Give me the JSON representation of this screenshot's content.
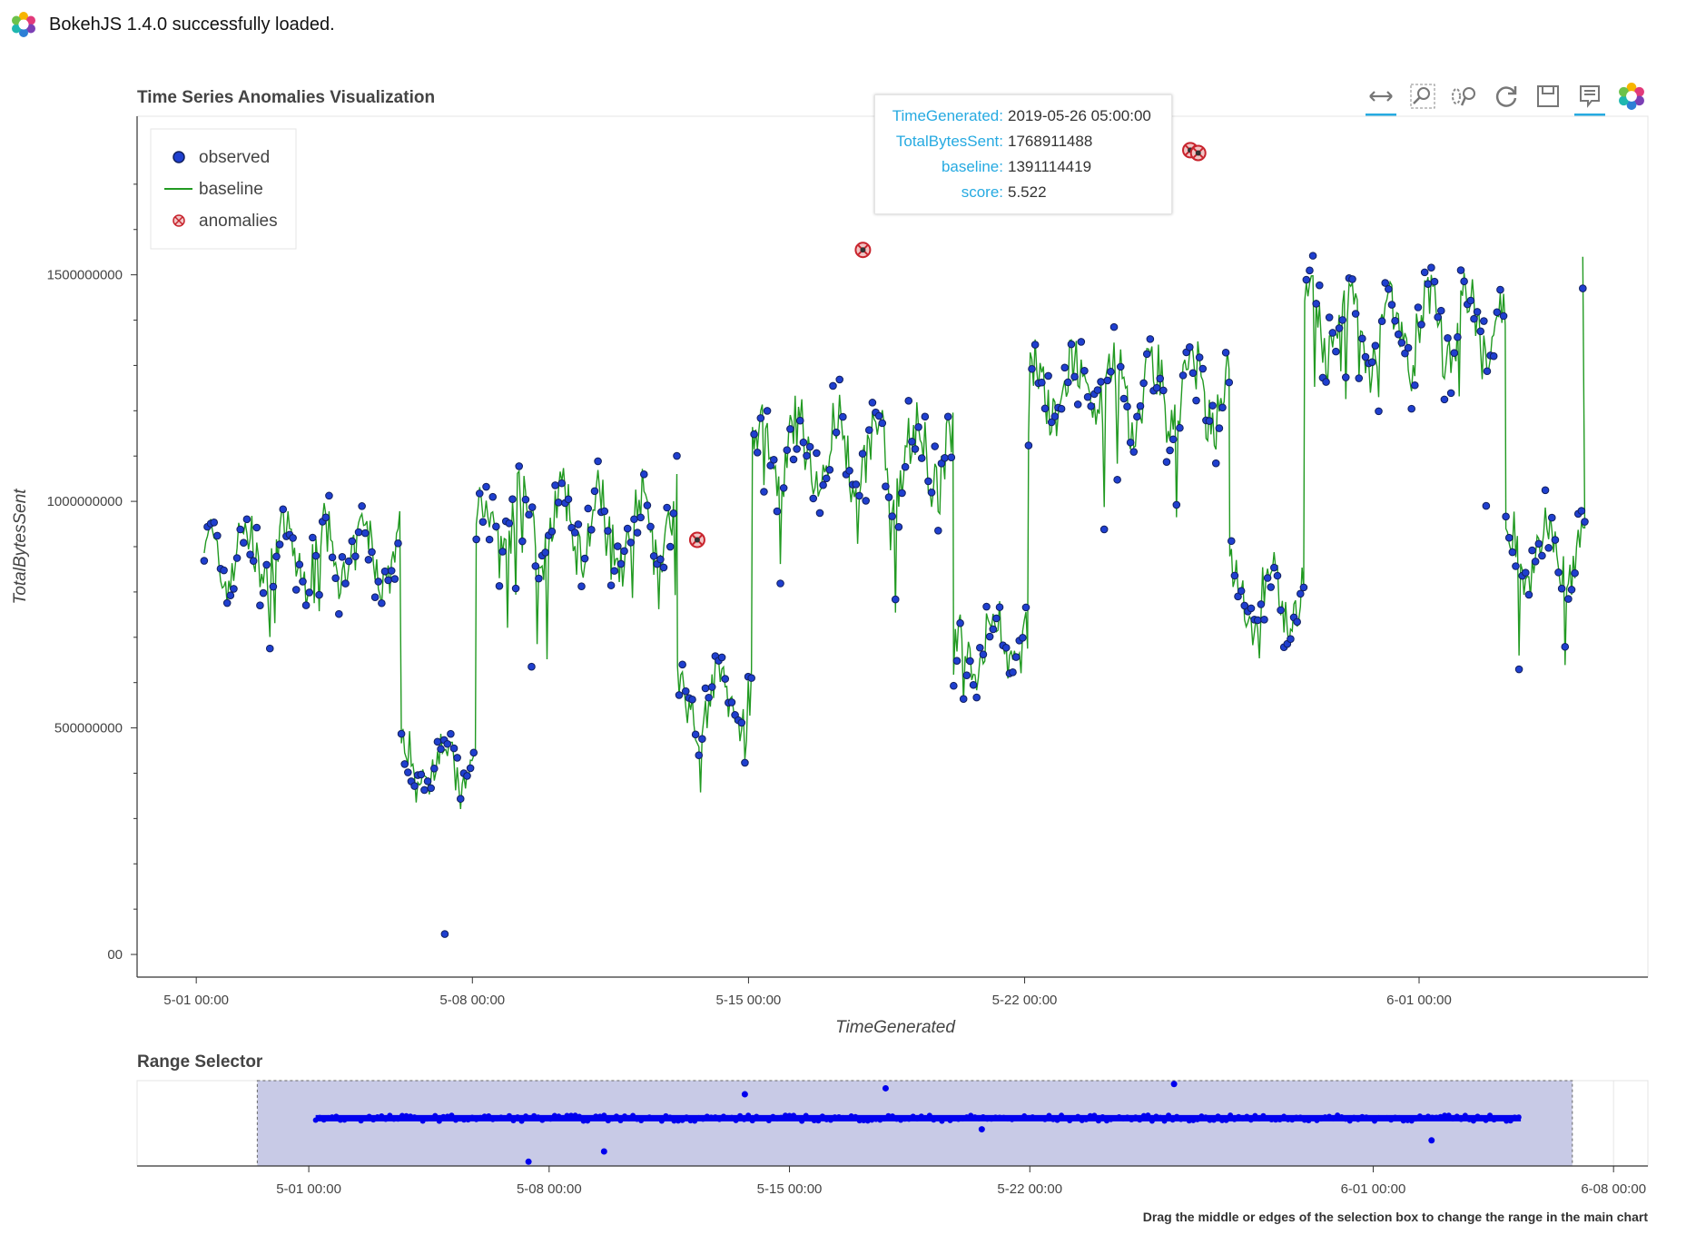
{
  "banner": {
    "text": "BokehJS 1.4.0 successfully loaded.",
    "icon": "bokeh-logo-icon"
  },
  "main_title": "Time Series Anomalies Visualization",
  "range_title": "Range Selector",
  "footnote": "Drag the middle or edges of the selection box to change the range in the main chart",
  "toolbar": [
    {
      "name": "pan-tool",
      "icon": "pan-icon",
      "active": true
    },
    {
      "name": "box-zoom-tool",
      "icon": "box-zoom-icon",
      "active": false
    },
    {
      "name": "wheel-zoom-tool",
      "icon": "wheel-zoom-icon",
      "active": false
    },
    {
      "name": "reset-tool",
      "icon": "reset-icon",
      "active": false
    },
    {
      "name": "save-tool",
      "icon": "save-icon",
      "active": false
    },
    {
      "name": "hover-tool",
      "icon": "hover-icon",
      "active": true
    },
    {
      "name": "bokeh-logo",
      "icon": "bokeh-logo-icon",
      "active": false
    }
  ],
  "tooltip": {
    "rows": [
      {
        "label": "TimeGenerated:",
        "value": "2019-05-26 05:00:00"
      },
      {
        "label": "TotalBytesSent:",
        "value": "1768911488"
      },
      {
        "label": "baseline:",
        "value": "1391114419"
      },
      {
        "label": "score:",
        "value": "5.522"
      }
    ]
  },
  "colors": {
    "observed_fill": "#1f3fcf",
    "observed_line": "#11205e",
    "baseline": "#229a22",
    "anomaly": "#c8232c",
    "selector_fill": "#c8cae6",
    "selector_points": "#0000ee",
    "accent": "#26aae1"
  },
  "chart_data": [
    {
      "type": "scatter+line",
      "title": "Time Series Anomalies Visualization",
      "xlabel": "TimeGenerated",
      "ylabel": "TotalBytesSent",
      "x_unit": "days since 2019-05-01 00:00",
      "xlim": [
        -1.5,
        36.8
      ],
      "ylim": [
        -50000000,
        1850000000
      ],
      "x_ticks": [
        {
          "x": 0,
          "label": "5-01 00:00"
        },
        {
          "x": 7,
          "label": "5-08 00:00"
        },
        {
          "x": 14,
          "label": "5-15 00:00"
        },
        {
          "x": 21,
          "label": "5-22 00:00"
        },
        {
          "x": 31,
          "label": "6-01 00:00"
        }
      ],
      "y_ticks": [
        {
          "y": 0,
          "label": "00"
        },
        {
          "y": 500000000,
          "label": "500000000"
        },
        {
          "y": 1000000000,
          "label": "1000000000"
        },
        {
          "y": 1500000000,
          "label": "1500000000"
        }
      ],
      "legend": {
        "position": "top-left",
        "entries": [
          "observed",
          "baseline",
          "anomalies"
        ]
      },
      "segments": [
        {
          "start": 0.2,
          "end": 5.2,
          "level": 880000000,
          "amp": 90000000
        },
        {
          "start": 5.2,
          "end": 7.1,
          "level": 420000000,
          "amp": 80000000
        },
        {
          "start": 7.1,
          "end": 12.2,
          "level": 950000000,
          "amp": 100000000
        },
        {
          "start": 12.2,
          "end": 14.1,
          "level": 560000000,
          "amp": 80000000
        },
        {
          "start": 14.1,
          "end": 19.2,
          "level": 1100000000,
          "amp": 110000000
        },
        {
          "start": 19.2,
          "end": 21.1,
          "level": 690000000,
          "amp": 90000000
        },
        {
          "start": 21.1,
          "end": 26.2,
          "level": 1240000000,
          "amp": 110000000
        },
        {
          "start": 26.2,
          "end": 28.1,
          "level": 790000000,
          "amp": 90000000
        },
        {
          "start": 28.1,
          "end": 33.2,
          "level": 1380000000,
          "amp": 110000000
        },
        {
          "start": 33.2,
          "end": 35.2,
          "level": 890000000,
          "amp": 90000000
        }
      ],
      "anomalies": [
        {
          "x": 12.7,
          "y": 915000000
        },
        {
          "x": 16.9,
          "y": 1555000000
        },
        {
          "x": 25.2,
          "y": 1775000000
        },
        {
          "x": 25.4,
          "y": 1768911488
        }
      ],
      "outliers": [
        {
          "x": 6.3,
          "y": 45000000
        },
        {
          "x": 8.5,
          "y": 635000000
        },
        {
          "x": 32.7,
          "y": 990000000
        }
      ],
      "final_point": {
        "x": 35.15,
        "y": 1470000000
      }
    },
    {
      "type": "scatter",
      "title": "Range Selector",
      "x_unit": "days since 2019-05-01 00:00",
      "xlim": [
        -5,
        39
      ],
      "ylim": [
        0,
        1
      ],
      "selection": [
        -1.5,
        36.8
      ],
      "x_ticks": [
        {
          "x": 0,
          "label": "5-01 00:00"
        },
        {
          "x": 7,
          "label": "5-08 00:00"
        },
        {
          "x": 14,
          "label": "5-15 00:00"
        },
        {
          "x": 21,
          "label": "5-22 00:00"
        },
        {
          "x": 31,
          "label": "6-01 00:00"
        },
        {
          "x": 38,
          "label": "6-08 00:00"
        }
      ],
      "band_y": 0.56,
      "band_x": [
        0.2,
        35.3
      ],
      "extras": [
        {
          "x": 6.4,
          "y": 0.05
        },
        {
          "x": 8.6,
          "y": 0.17
        },
        {
          "x": 12.7,
          "y": 0.84
        },
        {
          "x": 16.8,
          "y": 0.91
        },
        {
          "x": 19.6,
          "y": 0.43
        },
        {
          "x": 25.2,
          "y": 0.96
        },
        {
          "x": 32.7,
          "y": 0.3
        }
      ]
    }
  ]
}
